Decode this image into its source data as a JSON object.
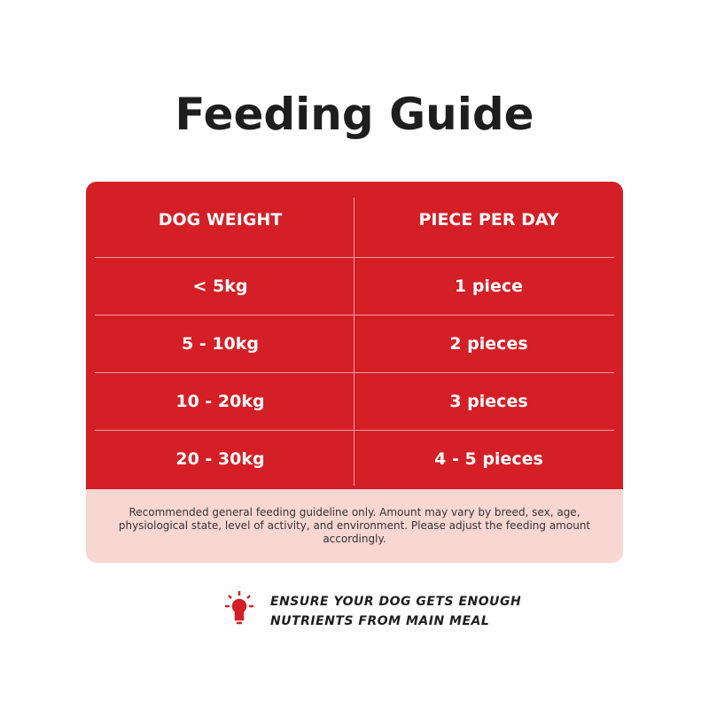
{
  "header": {
    "title": "Feeding Guide"
  },
  "table": {
    "columns": [
      "DOG WEIGHT",
      "PIECE PER DAY"
    ],
    "rows": [
      [
        "< 5kg",
        "1 piece"
      ],
      [
        "5 - 10kg",
        "2 pieces"
      ],
      [
        "10 - 20kg",
        "3 pieces"
      ],
      [
        "20 - 30kg",
        "4 - 5 pieces"
      ]
    ]
  },
  "note": "Recommended general feeding guideline only. Amount may vary by breed, sex, age, physiological state, level of activity, and environment. Please adjust the feeding amount accordingly.",
  "tip": {
    "line1": "Ensure your dog gets enough",
    "line2": "nutrients from main meal"
  }
}
